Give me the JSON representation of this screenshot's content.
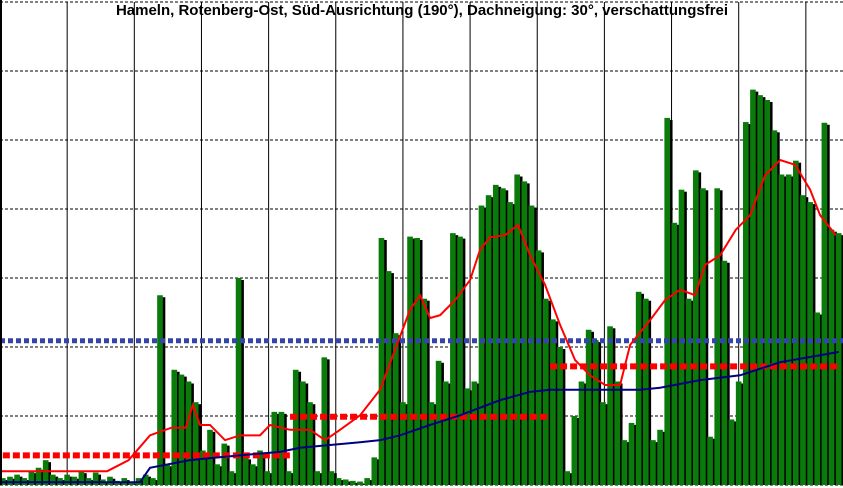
{
  "chart_data": {
    "type": "bar",
    "subtitle": "Hameln, Rotenberg-Ost, Süd-Ausrichtung (190°), Dachneigung: 30°, verschattungsfrei",
    "xlim": [
      0,
      118
    ],
    "xticks": [
      9.4,
      18.8,
      28.2,
      37.6,
      47,
      56.4,
      65.8,
      75.2,
      84.6,
      94,
      103.4,
      112.8
    ],
    "ylim": [
      0,
      7
    ],
    "yticks": [
      0,
      1,
      2,
      3,
      4,
      5,
      6,
      7
    ],
    "grid": true,
    "color": "#0a7a0a",
    "values": [
      0.1,
      0.12,
      0.15,
      0.1,
      0.2,
      0.25,
      0.36,
      0.15,
      0.1,
      0.15,
      0.12,
      0.2,
      0.1,
      0.18,
      0.08,
      0.12,
      0.06,
      0.1,
      0.05,
      0.1,
      0.15,
      0.1,
      2.75,
      0.3,
      1.67,
      1.6,
      1.5,
      1.2,
      0.5,
      0.8,
      0.3,
      0.6,
      0.2,
      3.0,
      0.4,
      0.3,
      0.5,
      0.2,
      1.06,
      1.06,
      0.2,
      1.67,
      1.5,
      1.2,
      0.2,
      1.85,
      0.2,
      0.1,
      0.08,
      0.06,
      0.05,
      0.1,
      0.4,
      3.58,
      3.1,
      2.2,
      1.2,
      3.6,
      3.58,
      2.7,
      1.2,
      1.8,
      1.5,
      3.65,
      3.6,
      1.4,
      1.5,
      4.05,
      4.2,
      4.35,
      4.3,
      4.1,
      4.5,
      4.4,
      4.05,
      3.4,
      2.7,
      2.4,
      2.0,
      0.2,
      1.0,
      1.5,
      2.25,
      2.1,
      1.2,
      2.3,
      1.5,
      0.65,
      0.9,
      2.8,
      2.7,
      0.65,
      0.8,
      5.32,
      3.8,
      4.28,
      2.7,
      4.56,
      4.3,
      0.7,
      4.3,
      3.25,
      0.95,
      1.5,
      5.26,
      5.73,
      5.65,
      5.58,
      5.14,
      4.5,
      4.5,
      4.7,
      4.2,
      4.1,
      2.5,
      5.25,
      3.7,
      3.65
    ],
    "lines": [
      {
        "color": "#ff0000",
        "x": [
          0,
          15,
          18,
          21,
          24,
          26,
          27,
          28,
          29.4,
          31.5,
          33.6,
          36.4,
          37.8,
          40.6,
          43.4,
          45.5,
          47.6,
          50.4,
          53.2,
          55.3,
          57.4,
          58.8,
          60.2,
          61.6,
          63.7,
          65.8,
          67.2,
          68.6,
          70.7,
          72.5,
          74.2,
          76.3,
          78.4,
          80.5,
          82.6,
          84.7,
          86.8,
          88.2,
          91,
          93.1,
          95.2,
          97.3,
          98.7,
          100.8,
          103,
          105,
          107.1,
          109.2,
          111.3,
          113.4,
          114.8,
          117
        ],
        "values": [
          0.2,
          0.2,
          0.36,
          0.72,
          0.83,
          0.83,
          1.16,
          0.87,
          0.87,
          0.65,
          0.72,
          0.72,
          0.87,
          0.8,
          0.8,
          0.65,
          0.8,
          1.01,
          1.38,
          1.96,
          2.54,
          2.75,
          2.42,
          2.46,
          2.68,
          2.97,
          3.41,
          3.59,
          3.62,
          3.77,
          3.33,
          2.9,
          2.32,
          1.81,
          1.59,
          1.45,
          1.45,
          2.03,
          2.39,
          2.68,
          2.83,
          2.75,
          3.19,
          3.33,
          3.7,
          3.91,
          4.49,
          4.71,
          4.64,
          4.28,
          3.91,
          3.62
        ]
      },
      {
        "color": "#000080",
        "x": [
          0,
          19.6,
          21,
          26.6,
          29.4,
          33.6,
          39.2,
          42,
          46.2,
          50.4,
          53.2,
          56,
          60.2,
          64.4,
          70,
          74.2,
          77,
          84,
          89.6,
          92.4,
          98,
          103.6,
          109.2,
          114.8,
          117.4
        ],
        "values": [
          0.04,
          0.04,
          0.25,
          0.36,
          0.39,
          0.43,
          0.48,
          0.54,
          0.58,
          0.62,
          0.65,
          0.72,
          0.87,
          1.01,
          1.23,
          1.35,
          1.38,
          1.38,
          1.38,
          1.41,
          1.52,
          1.59,
          1.78,
          1.88,
          1.93
        ]
      }
    ],
    "reference_line": {
      "value": 2.09,
      "color": "#3344aa"
    },
    "steps": {
      "color": "#ff0000",
      "segments": [
        {
          "x": [
            0.4,
            40.6
          ],
          "value": 0.43
        },
        {
          "x": [
            40.6,
            77
          ],
          "value": 0.99
        },
        {
          "x": [
            77,
            117.4
          ],
          "value": 1.72
        }
      ]
    }
  }
}
